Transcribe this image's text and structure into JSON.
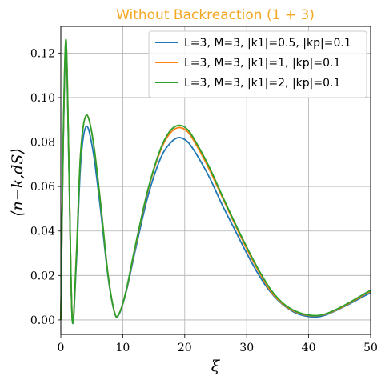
{
  "chart_data": {
    "type": "line",
    "title": "Without Backreaction (1 + 3)",
    "title_color": "#f5a623",
    "xlabel": "ξ",
    "ylabel": "⟨n−k,dS⟩",
    "xlim": [
      0,
      50
    ],
    "ylim": [
      -0.0065,
      0.132
    ],
    "xticks": [
      0,
      10,
      20,
      30,
      40,
      50
    ],
    "xtick_labels": [
      "0",
      "10",
      "20",
      "30",
      "40",
      "50"
    ],
    "yticks": [
      0.0,
      0.02,
      0.04,
      0.06,
      0.08,
      0.1,
      0.12
    ],
    "ytick_labels": [
      "0.00",
      "0.02",
      "0.04",
      "0.06",
      "0.08",
      "0.10",
      "0.12"
    ],
    "grid": true,
    "legend_position": "top-right",
    "series": [
      {
        "name": "L=3, M=3, |k1|=0.5, |kp|=0.1",
        "color": "#1f77b4",
        "x": [
          0,
          0.4,
          0.85,
          1.3,
          1.85,
          2.5,
          3.2,
          4.1,
          5.2,
          6.4,
          7.6,
          8.6,
          9.3,
          10.5,
          12,
          14,
          16,
          17.5,
          19,
          20.5,
          22,
          24,
          26,
          28,
          30,
          32,
          34,
          36,
          38,
          40,
          41.5,
          43,
          45,
          47,
          49,
          50
        ],
        "y": [
          0,
          0.08,
          0.123,
          0.07,
          0,
          0.025,
          0.07,
          0.087,
          0.076,
          0.05,
          0.02,
          0.004,
          0.002,
          0.012,
          0.031,
          0.055,
          0.072,
          0.079,
          0.082,
          0.08,
          0.074,
          0.064,
          0.052,
          0.041,
          0.03,
          0.02,
          0.012,
          0.0065,
          0.003,
          0.0015,
          0.0014,
          0.0025,
          0.005,
          0.0078,
          0.0108,
          0.0122
        ]
      },
      {
        "name": "L=3, M=3, |k1|=1, |kp|=0.1",
        "color": "#ff7f0e",
        "x": [
          0,
          0.4,
          0.85,
          1.3,
          1.85,
          2.5,
          3.2,
          4.1,
          5.2,
          6.4,
          7.6,
          8.6,
          9.3,
          10.5,
          12,
          14,
          16,
          17.5,
          19,
          20.5,
          22,
          24,
          26,
          28,
          30,
          32,
          34,
          36,
          38,
          40,
          41.5,
          43,
          45,
          47,
          49,
          50
        ],
        "y": [
          0,
          0.082,
          0.126,
          0.072,
          0,
          0.028,
          0.075,
          0.092,
          0.081,
          0.053,
          0.021,
          0.0042,
          0.0022,
          0.0125,
          0.0325,
          0.0575,
          0.0755,
          0.0835,
          0.0865,
          0.0845,
          0.078,
          0.0675,
          0.0555,
          0.0435,
          0.032,
          0.0215,
          0.0125,
          0.0068,
          0.0035,
          0.002,
          0.0019,
          0.0028,
          0.0052,
          0.0082,
          0.0115,
          0.013
        ]
      },
      {
        "name": "L=3, M=3, |k1|=2, |kp|=0.1",
        "color": "#2ca02c",
        "x": [
          0,
          0.4,
          0.85,
          1.3,
          1.85,
          2.5,
          3.2,
          4.1,
          5.2,
          6.4,
          7.6,
          8.6,
          9.3,
          10.5,
          12,
          14,
          16,
          17.5,
          19,
          20.5,
          22,
          24,
          26,
          28,
          30,
          32,
          34,
          36,
          38,
          40,
          41.5,
          43,
          45,
          47,
          49,
          50
        ],
        "y": [
          0,
          0.083,
          0.126,
          0.072,
          0,
          0.028,
          0.075,
          0.092,
          0.081,
          0.053,
          0.021,
          0.0042,
          0.0022,
          0.0127,
          0.033,
          0.058,
          0.0762,
          0.0845,
          0.0875,
          0.0855,
          0.079,
          0.0685,
          0.0562,
          0.0442,
          0.0328,
          0.0222,
          0.0132,
          0.0072,
          0.0038,
          0.0022,
          0.002,
          0.003,
          0.0055,
          0.0085,
          0.0118,
          0.0133
        ]
      }
    ]
  }
}
